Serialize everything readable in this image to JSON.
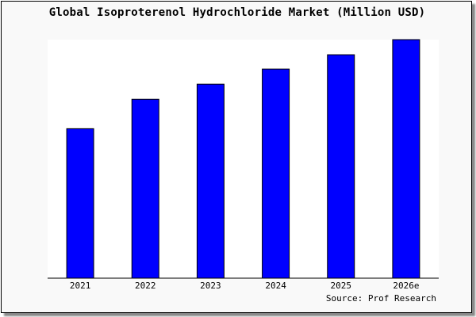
{
  "chart_data": {
    "type": "bar",
    "title": "Global Isoproterenol Hydrochloride Market (Million USD)",
    "categories": [
      "2021",
      "2022",
      "2023",
      "2024",
      "2025",
      "2026e"
    ],
    "values": [
      188,
      225,
      244,
      263,
      281,
      300
    ],
    "ylim": [
      0,
      300
    ],
    "xlabel": "",
    "ylabel": "",
    "grid": false,
    "bar_color": "#0000ff",
    "source": "Source: Prof Research"
  }
}
